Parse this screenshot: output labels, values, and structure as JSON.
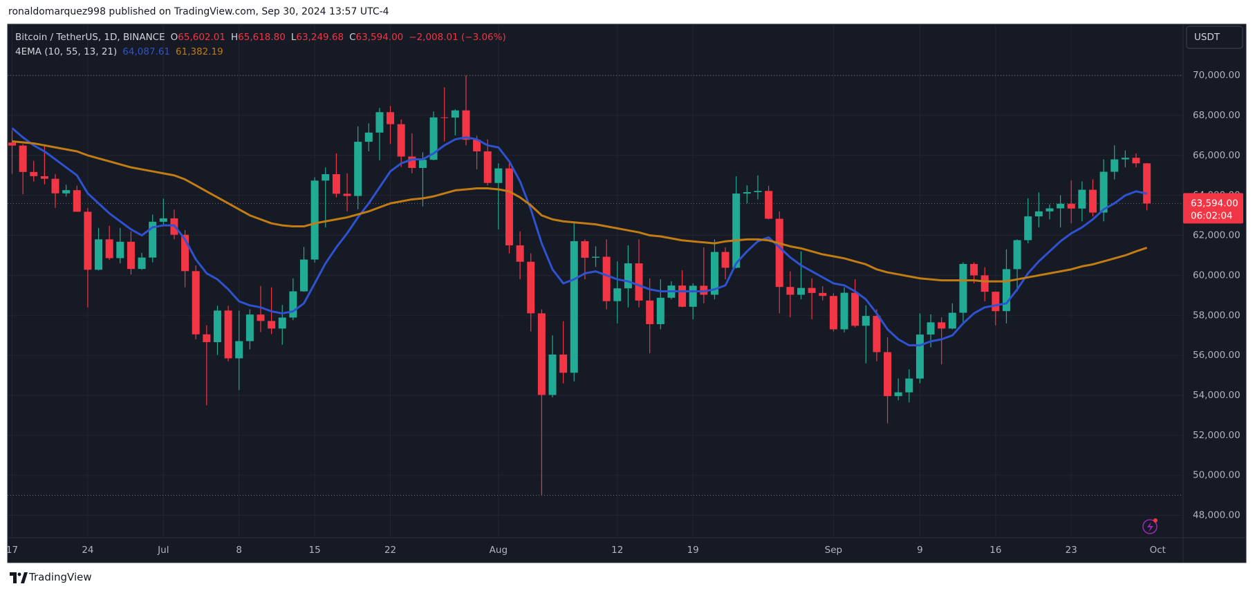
{
  "header": {
    "byline": "ronaldomarquez998 published on TradingView.com, Sep 30, 2024 13:57 UTC-4"
  },
  "chart_data": {
    "type": "candlestick",
    "title": "Bitcoin / TetherUS, 1D, BINANCE",
    "ohlc_legend": [
      {
        "label": "O",
        "value": "65,602.01"
      },
      {
        "label": "H",
        "value": "65,618.80"
      },
      {
        "label": "L",
        "value": "63,249.68"
      },
      {
        "label": "C",
        "value": "63,594.00"
      }
    ],
    "change_label": "−2,008.01 (−3.06%)",
    "indicator": "4EMA (10, 55, 13, 21)",
    "currency": "USDT",
    "last_price_label": "63,594.00",
    "countdown": "06:02:04",
    "categories": [
      "17",
      null,
      null,
      null,
      null,
      null,
      null,
      "24",
      null,
      null,
      null,
      null,
      null,
      null,
      "Jul",
      null,
      null,
      null,
      null,
      null,
      null,
      "8",
      null,
      null,
      null,
      null,
      null,
      null,
      "15",
      null,
      null,
      null,
      null,
      null,
      null,
      "22",
      null,
      null,
      null,
      null,
      null,
      null,
      null,
      null,
      null,
      "Aug",
      null,
      null,
      null,
      null,
      null,
      null,
      null,
      null,
      null,
      null,
      "12",
      null,
      null,
      null,
      null,
      null,
      null,
      "19",
      null,
      null,
      null,
      null,
      null,
      null,
      null,
      null,
      null,
      null,
      null,
      null,
      "Sep",
      null,
      null,
      null,
      null,
      null,
      null,
      null,
      "9",
      null,
      null,
      null,
      null,
      null,
      null,
      "16",
      null,
      null,
      null,
      null,
      null,
      null,
      "23",
      null,
      null,
      null,
      null,
      null,
      null,
      null
    ],
    "x_next_label": "Oct",
    "open": [
      66640,
      66490,
      65170,
      64960,
      64830,
      64100,
      64260,
      63180,
      60280,
      61800,
      60860,
      61680,
      60320,
      60890,
      62680,
      62850,
      62030,
      60210,
      57050,
      56660,
      58240,
      55850,
      56710,
      58040,
      57720,
      57340,
      57890,
      59200,
      60790,
      64740,
      65060,
      64080,
      63970,
      66680,
      67140,
      68160,
      67560,
      65940,
      65370,
      65780,
      67900,
      67890,
      68250,
      66780,
      66200,
      64620,
      65350,
      61500,
      60680,
      58100,
      54020,
      56040,
      55130,
      61710,
      60880,
      60930,
      58710,
      59350,
      60600,
      58740,
      57560,
      58880,
      59490,
      58430,
      59480,
      59030,
      61170,
      60380,
      64090,
      64160,
      64220,
      62830,
      59420,
      59030,
      59370,
      59120,
      58970,
      57300,
      59130,
      57480,
      57970,
      56160,
      53960,
      54150,
      54840,
      57040,
      57650,
      57340,
      58130,
      60570,
      60000,
      59180,
      58210,
      60310,
      61760,
      62950,
      63200,
      63350,
      63580,
      63340,
      64280,
      63140,
      65180,
      65800,
      65880,
      65602.01
    ],
    "high": [
      67250,
      66560,
      65730,
      66480,
      65070,
      64530,
      64490,
      63370,
      62370,
      62480,
      62370,
      62200,
      61130,
      63040,
      63840,
      63290,
      62270,
      60500,
      57500,
      58480,
      58480,
      58240,
      58300,
      59470,
      59400,
      58520,
      59850,
      61420,
      64900,
      65400,
      66100,
      65100,
      67450,
      67600,
      68370,
      68470,
      67800,
      67100,
      66150,
      68200,
      69400,
      68300,
      70000,
      66980,
      66800,
      65600,
      65600,
      62200,
      61100,
      58300,
      57000,
      57700,
      62700,
      61800,
      61450,
      61800,
      60700,
      61500,
      61800,
      59850,
      59800,
      59700,
      60250,
      59600,
      61400,
      61800,
      61400,
      64950,
      64500,
      65000,
      64480,
      63200,
      60200,
      61200,
      59850,
      59450,
      59100,
      59400,
      59800,
      58500,
      58300,
      56900,
      54850,
      55300,
      58100,
      58050,
      57900,
      58600,
      60650,
      60650,
      60400,
      59200,
      61300,
      61800,
      63850,
      64150,
      63550,
      64000,
      64750,
      64700,
      64800,
      65800,
      66500,
      66250,
      66100,
      65618.8
    ],
    "low": [
      65070,
      64060,
      64690,
      64550,
      63370,
      63940,
      63180,
      58400,
      60240,
      60770,
      60600,
      60040,
      60270,
      60650,
      62520,
      61800,
      59400,
      56800,
      53500,
      56020,
      55700,
      54260,
      56300,
      57160,
      57060,
      56530,
      57760,
      59180,
      60640,
      62400,
      63900,
      63200,
      63300,
      66200,
      65750,
      66570,
      65410,
      65100,
      63450,
      65750,
      66700,
      67000,
      66500,
      65300,
      64500,
      62300,
      61100,
      59800,
      57200,
      49000,
      53900,
      54600,
      54700,
      59800,
      60420,
      58300,
      57600,
      58400,
      58400,
      56100,
      57300,
      58800,
      58400,
      57800,
      58600,
      58800,
      59800,
      60350,
      63600,
      63800,
      62800,
      58100,
      57900,
      58800,
      57800,
      58750,
      57200,
      57150,
      57400,
      55600,
      55700,
      52600,
      53750,
      53650,
      54600,
      56400,
      55550,
      57300,
      57650,
      59600,
      58700,
      57500,
      57600,
      59200,
      61600,
      62400,
      62800,
      62400,
      62600,
      62700,
      62950,
      62700,
      64800,
      65400,
      65400,
      63249.68
    ],
    "close": [
      66490,
      65170,
      64960,
      64830,
      64100,
      64260,
      63180,
      60280,
      61800,
      60860,
      61680,
      60320,
      60890,
      62680,
      62850,
      62030,
      60210,
      57050,
      56660,
      58240,
      55850,
      56710,
      58040,
      57720,
      57340,
      57890,
      59200,
      60790,
      64740,
      65060,
      64080,
      63970,
      66680,
      67140,
      68160,
      67560,
      65940,
      65370,
      65780,
      67900,
      67890,
      68250,
      66780,
      66200,
      64620,
      65350,
      61500,
      60680,
      58100,
      54020,
      56040,
      55130,
      61710,
      60880,
      60930,
      58710,
      59350,
      60600,
      58740,
      57560,
      58880,
      59490,
      58430,
      59480,
      59030,
      61170,
      60380,
      64090,
      64160,
      64220,
      62830,
      59420,
      59030,
      59370,
      59120,
      58970,
      57300,
      59130,
      57480,
      57970,
      56160,
      53960,
      54150,
      54840,
      57040,
      57650,
      57340,
      58130,
      60570,
      60000,
      59180,
      58210,
      60310,
      61760,
      62950,
      63200,
      63350,
      63580,
      63340,
      64280,
      63140,
      65180,
      65800,
      65880,
      65602.01,
      63594
    ],
    "up_color": "#22ab94",
    "down_color": "#f23645",
    "series": [
      {
        "color": "#2f52d0",
        "value_label": "64,087.61",
        "values": [
          67360,
          66900,
          66500,
          66200,
          65800,
          65400,
          65000,
          64100,
          63600,
          63100,
          62700,
          62300,
          62000,
          62400,
          62500,
          62500,
          61800,
          60800,
          60100,
          59800,
          59300,
          58700,
          58500,
          58400,
          58200,
          58100,
          58200,
          58600,
          59600,
          60600,
          61400,
          62100,
          62900,
          63600,
          64400,
          65200,
          65600,
          65800,
          65800,
          66100,
          66500,
          66800,
          66900,
          66800,
          66500,
          66400,
          65700,
          64700,
          63300,
          61600,
          60300,
          59600,
          59800,
          60100,
          60200,
          60000,
          59800,
          59700,
          59500,
          59300,
          59200,
          59200,
          59200,
          59200,
          59200,
          59300,
          59500,
          60600,
          61200,
          61700,
          61900,
          61400,
          60900,
          60500,
          60200,
          59900,
          59600,
          59500,
          59200,
          58800,
          58100,
          57300,
          56800,
          56500,
          56500,
          56700,
          56800,
          57000,
          57600,
          58100,
          58400,
          58500,
          58600,
          59300,
          60100,
          60700,
          61200,
          61700,
          62100,
          62400,
          62800,
          63300,
          63600,
          64000,
          64200,
          64087.61
        ]
      },
      {
        "color": "#c27c14",
        "value_label": "61,382.19",
        "values": [
          66700,
          66650,
          66600,
          66500,
          66400,
          66300,
          66200,
          66000,
          65850,
          65700,
          65550,
          65400,
          65300,
          65200,
          65100,
          65000,
          64800,
          64500,
          64200,
          63900,
          63600,
          63300,
          63000,
          62800,
          62600,
          62500,
          62450,
          62450,
          62600,
          62700,
          62800,
          62900,
          63050,
          63200,
          63400,
          63600,
          63700,
          63800,
          63850,
          63950,
          64100,
          64250,
          64300,
          64350,
          64350,
          64300,
          64200,
          63900,
          63500,
          63000,
          62800,
          62700,
          62650,
          62600,
          62550,
          62450,
          62350,
          62250,
          62150,
          62000,
          61950,
          61850,
          61750,
          61700,
          61650,
          61600,
          61700,
          61750,
          61800,
          61800,
          61750,
          61600,
          61450,
          61350,
          61200,
          61050,
          60950,
          60850,
          60700,
          60550,
          60300,
          60150,
          60050,
          59950,
          59850,
          59800,
          59750,
          59750,
          59750,
          59750,
          59700,
          59700,
          59700,
          59800,
          59900,
          60000,
          60100,
          60200,
          60300,
          60450,
          60550,
          60700,
          60850,
          61000,
          61200,
          61382.19
        ]
      }
    ],
    "ylim": [
      46880,
      72560
    ],
    "yticks": [
      {
        "value": 48000,
        "label": "48,000.00"
      },
      {
        "value": 50000,
        "label": "50,000.00"
      },
      {
        "value": 52000,
        "label": "52,000.00"
      },
      {
        "value": 54000,
        "label": "54,000.00"
      },
      {
        "value": 56000,
        "label": "56,000.00"
      },
      {
        "value": 58000,
        "label": "58,000.00"
      },
      {
        "value": 60000,
        "label": "60,000.00"
      },
      {
        "value": 62000,
        "label": "62,000.00"
      },
      {
        "value": 64000,
        "label": "64,000.00"
      },
      {
        "value": 66000,
        "label": "66,000.00"
      },
      {
        "value": 68000,
        "label": "68,000.00"
      },
      {
        "value": 70000,
        "label": "70,000.00"
      }
    ],
    "grid": true
  },
  "footer": {
    "brand": "TradingView"
  }
}
